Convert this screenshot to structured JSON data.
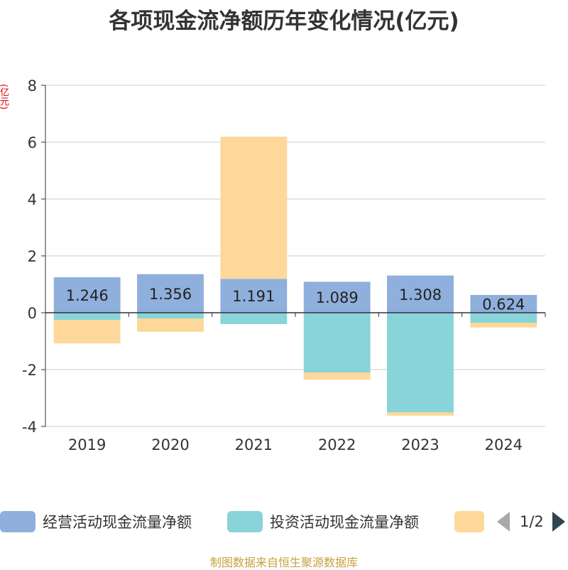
{
  "chart_data": {
    "type": "bar",
    "stacked": true,
    "title": "各项现金流净额历年变化情况(亿元)",
    "ylabel": "(亿元)",
    "ylim": [
      -4,
      8
    ],
    "yticks": [
      -4,
      -2,
      0,
      2,
      4,
      6,
      8
    ],
    "grid": true,
    "legend_position": "bottom",
    "categories": [
      "2019",
      "2020",
      "2021",
      "2022",
      "2023",
      "2024"
    ],
    "series": [
      {
        "name": "经营活动现金流量净额",
        "color": "#8fafdc",
        "values": [
          1.246,
          1.356,
          1.191,
          1.089,
          1.308,
          0.624
        ],
        "labels": [
          "1.246",
          "1.356",
          "1.191",
          "1.089",
          "1.308",
          "0.624"
        ]
      },
      {
        "name": "投资活动现金流量净额",
        "color": "#88d4d8",
        "values": [
          -0.25,
          -0.2,
          -0.4,
          -2.1,
          -3.5,
          -0.35
        ]
      },
      {
        "name": "",
        "color": "#fdd89a",
        "values": [
          -0.83,
          -0.47,
          5.0,
          -0.26,
          -0.12,
          -0.17
        ]
      }
    ]
  },
  "legend": {
    "page_label": "1/2"
  },
  "source": "制图数据来自恒生聚源数据库"
}
